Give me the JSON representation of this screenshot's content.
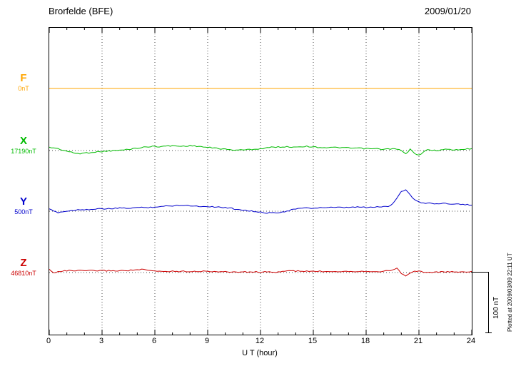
{
  "header": {
    "title": "Brorfelde (BFE)",
    "date": "2009/01/20"
  },
  "axes": {
    "xlabel": "U T (hour)",
    "xticks": [
      0,
      3,
      6,
      9,
      12,
      15,
      18,
      21,
      24
    ],
    "xmin": 0,
    "xmax": 24
  },
  "scale_bar": {
    "label": "100 nT",
    "nT": 100
  },
  "plotted_at": "Plotted at 2009/03/09 22:11 UT",
  "chart_data": {
    "type": "line",
    "title": "Brorfelde (BFE)",
    "date": "2009/01/20",
    "xlabel": "U T (hour)",
    "x_range": [
      0,
      24
    ],
    "grid": "dotted vertical every 3 hours, dotted horizontal baseline per channel",
    "scale_nT_per_bar": 100,
    "series": [
      {
        "name": "F",
        "color": "#FFA500",
        "baseline_label": "0nT",
        "step": 24,
        "offsets_nT": [
          0,
          0
        ]
      },
      {
        "name": "X",
        "color": "#00BB00",
        "baseline_label": "17190nT",
        "step": 0.25,
        "offsets_nT": [
          5,
          4.5,
          3,
          1,
          -1,
          -3,
          -4.5,
          -5,
          -4,
          -3.5,
          -2.5,
          -2,
          -1.5,
          -1,
          -0.5,
          0,
          0.5,
          1,
          2,
          3,
          4,
          5,
          6,
          6.5,
          7,
          6.5,
          7,
          7.5,
          8,
          7.5,
          7,
          7.5,
          8,
          7.5,
          7,
          6,
          5,
          4.5,
          4,
          3,
          2,
          1.5,
          1,
          1,
          1,
          1.5,
          2,
          2.5,
          3,
          4,
          5,
          5.5,
          6,
          6,
          6,
          6,
          6,
          6.5,
          7,
          6.5,
          6,
          5.5,
          5,
          5,
          5,
          5,
          5,
          4.5,
          4,
          4,
          4,
          3.5,
          3,
          3,
          3,
          2.5,
          2,
          2.5,
          3,
          2,
          0,
          -6,
          2,
          -4,
          -8,
          -2,
          1,
          0.5,
          0,
          1,
          2,
          1.5,
          1,
          1.5,
          2,
          2.5,
          3
        ]
      },
      {
        "name": "Y",
        "color": "#0000CC",
        "baseline_label": "500nT",
        "step": 0.25,
        "offsets_nT": [
          3,
          0,
          -2,
          -1,
          0,
          1,
          2,
          2.5,
          3,
          3,
          3,
          3.5,
          4,
          4,
          4,
          4.5,
          5,
          5,
          5,
          5.5,
          6,
          6,
          6,
          6.5,
          7,
          7.5,
          8,
          8.5,
          9,
          9.5,
          10,
          9.5,
          9,
          8.5,
          8,
          8,
          8,
          7.5,
          7,
          6.5,
          6,
          5,
          4,
          3,
          2,
          1,
          0,
          -1,
          -2,
          -2.5,
          -3,
          -2.5,
          -2,
          -1,
          0,
          2,
          4,
          4.5,
          5,
          5,
          5,
          5.5,
          6,
          6,
          6,
          6,
          6,
          6,
          6,
          6.5,
          7,
          6.5,
          6,
          6.5,
          7,
          7,
          7.5,
          8,
          12,
          22,
          33,
          35,
          27,
          19,
          15,
          13,
          14,
          13,
          12,
          12.5,
          13,
          12.5,
          12,
          11.5,
          11,
          10.5,
          10
        ]
      },
      {
        "name": "Z",
        "color": "#CC0000",
        "baseline_label": "46810nT",
        "step": 0.25,
        "offsets_nT": [
          5,
          -1,
          2,
          2.5,
          3,
          3,
          3,
          3,
          3,
          3,
          3,
          3,
          3,
          3,
          3,
          3,
          3,
          3,
          3.5,
          4,
          4.5,
          5,
          4,
          3,
          2.5,
          2,
          2,
          2,
          2,
          2,
          2,
          2,
          2,
          2,
          2,
          2,
          2,
          2,
          1.5,
          1.5,
          1,
          1,
          1,
          1,
          1,
          1,
          1,
          1,
          1,
          1,
          0.5,
          0,
          1,
          2,
          2.5,
          3,
          2.5,
          2,
          2,
          2,
          2,
          2,
          2,
          2,
          2,
          2,
          2,
          2,
          2,
          2,
          2,
          2,
          2,
          2,
          2,
          2,
          2,
          3,
          4,
          8,
          -2,
          -6,
          0,
          2,
          2,
          1,
          0,
          0.5,
          1,
          1,
          1,
          1,
          1,
          1,
          1,
          1.5,
          2
        ]
      }
    ]
  }
}
